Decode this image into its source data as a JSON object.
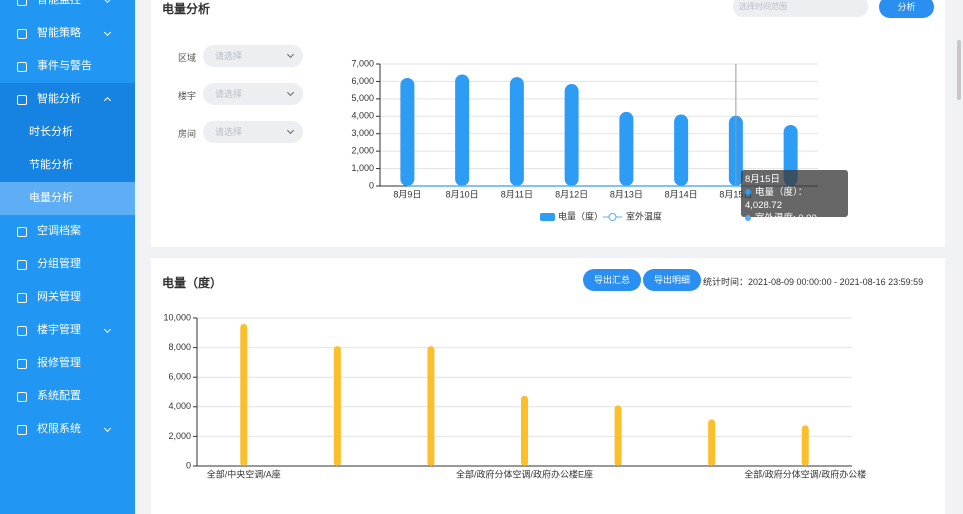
{
  "sidebar": {
    "items": [
      "智能监控",
      "智能策略",
      "事件与警告",
      "智能分析",
      "时长分析",
      "节能分析",
      "电量分析",
      "空调档案",
      "分组管理",
      "网关管理",
      "楼宇管理",
      "报修管理",
      "系统配置",
      "权限系统"
    ]
  },
  "analysis": {
    "title": "电量分析",
    "date_placeholder": "选择时间范围",
    "button": "分析",
    "filters": [
      {
        "label": "区域",
        "placeholder": "请选择"
      },
      {
        "label": "楼宇",
        "placeholder": "请选择"
      },
      {
        "label": "房间",
        "placeholder": "请选择"
      }
    ],
    "chart": {
      "type": "bar",
      "categories": [
        "8月9日",
        "8月10日",
        "8月11日",
        "8月12日",
        "8月13日",
        "8月14日",
        "8月15日",
        null
      ],
      "series": [
        {
          "name": "电量（度）",
          "type": "bar",
          "color": "#2d9cf4",
          "values": [
            6200,
            6400,
            6250,
            5850,
            4250,
            4100,
            4028.72,
            3500
          ]
        },
        {
          "name": "室外温度",
          "type": "line",
          "color": "#5aaef5",
          "values": [
            0,
            0,
            0,
            0,
            0,
            0,
            0,
            0
          ]
        }
      ],
      "ylim": [
        0,
        7000
      ],
      "yticks": [
        0,
        {
          "value": 1000,
          "label": "1,000"
        },
        {
          "value": 2000,
          "label": "2,000"
        },
        {
          "value": 3000,
          "label": "3,000"
        },
        {
          "value": 4000,
          "label": "4,000"
        },
        {
          "value": 5000,
          "label": "5,000"
        },
        {
          "value": 6000,
          "label": "6,000"
        },
        {
          "value": 7000,
          "label": "7,000"
        }
      ],
      "grid": true,
      "tooltip": {
        "title": "8月15日",
        "rows": [
          "电量（度）：4,028.72",
          "室外温度: 0.00"
        ]
      }
    }
  },
  "energy": {
    "title": "电量（度）",
    "buttons": [
      "导出汇总",
      "导出明细"
    ],
    "stat_time": "统计时间：2021-08-09 00:00:00 - 2021-08-16 23:59:59",
    "chart": {
      "type": "bar",
      "categories": [
        "全部/中央空调/A座",
        null,
        null,
        "全部/政府分体空调/政府办公楼E座",
        null,
        null,
        "全部/政府分体空调/政府办公楼"
      ],
      "values": [
        9600,
        8100,
        8100,
        4750,
        4100,
        3150,
        2750
      ],
      "color": "#fbbf2c",
      "ylim": [
        0,
        10000
      ],
      "yticks": [
        0,
        {
          "value": 2000,
          "label": "2,000"
        },
        {
          "value": 4000,
          "label": "4,000"
        },
        {
          "value": 6000,
          "label": "6,000"
        },
        {
          "value": 8000,
          "label": "8,000"
        },
        {
          "value": 10000,
          "label": "10,000"
        }
      ],
      "grid": true
    }
  }
}
